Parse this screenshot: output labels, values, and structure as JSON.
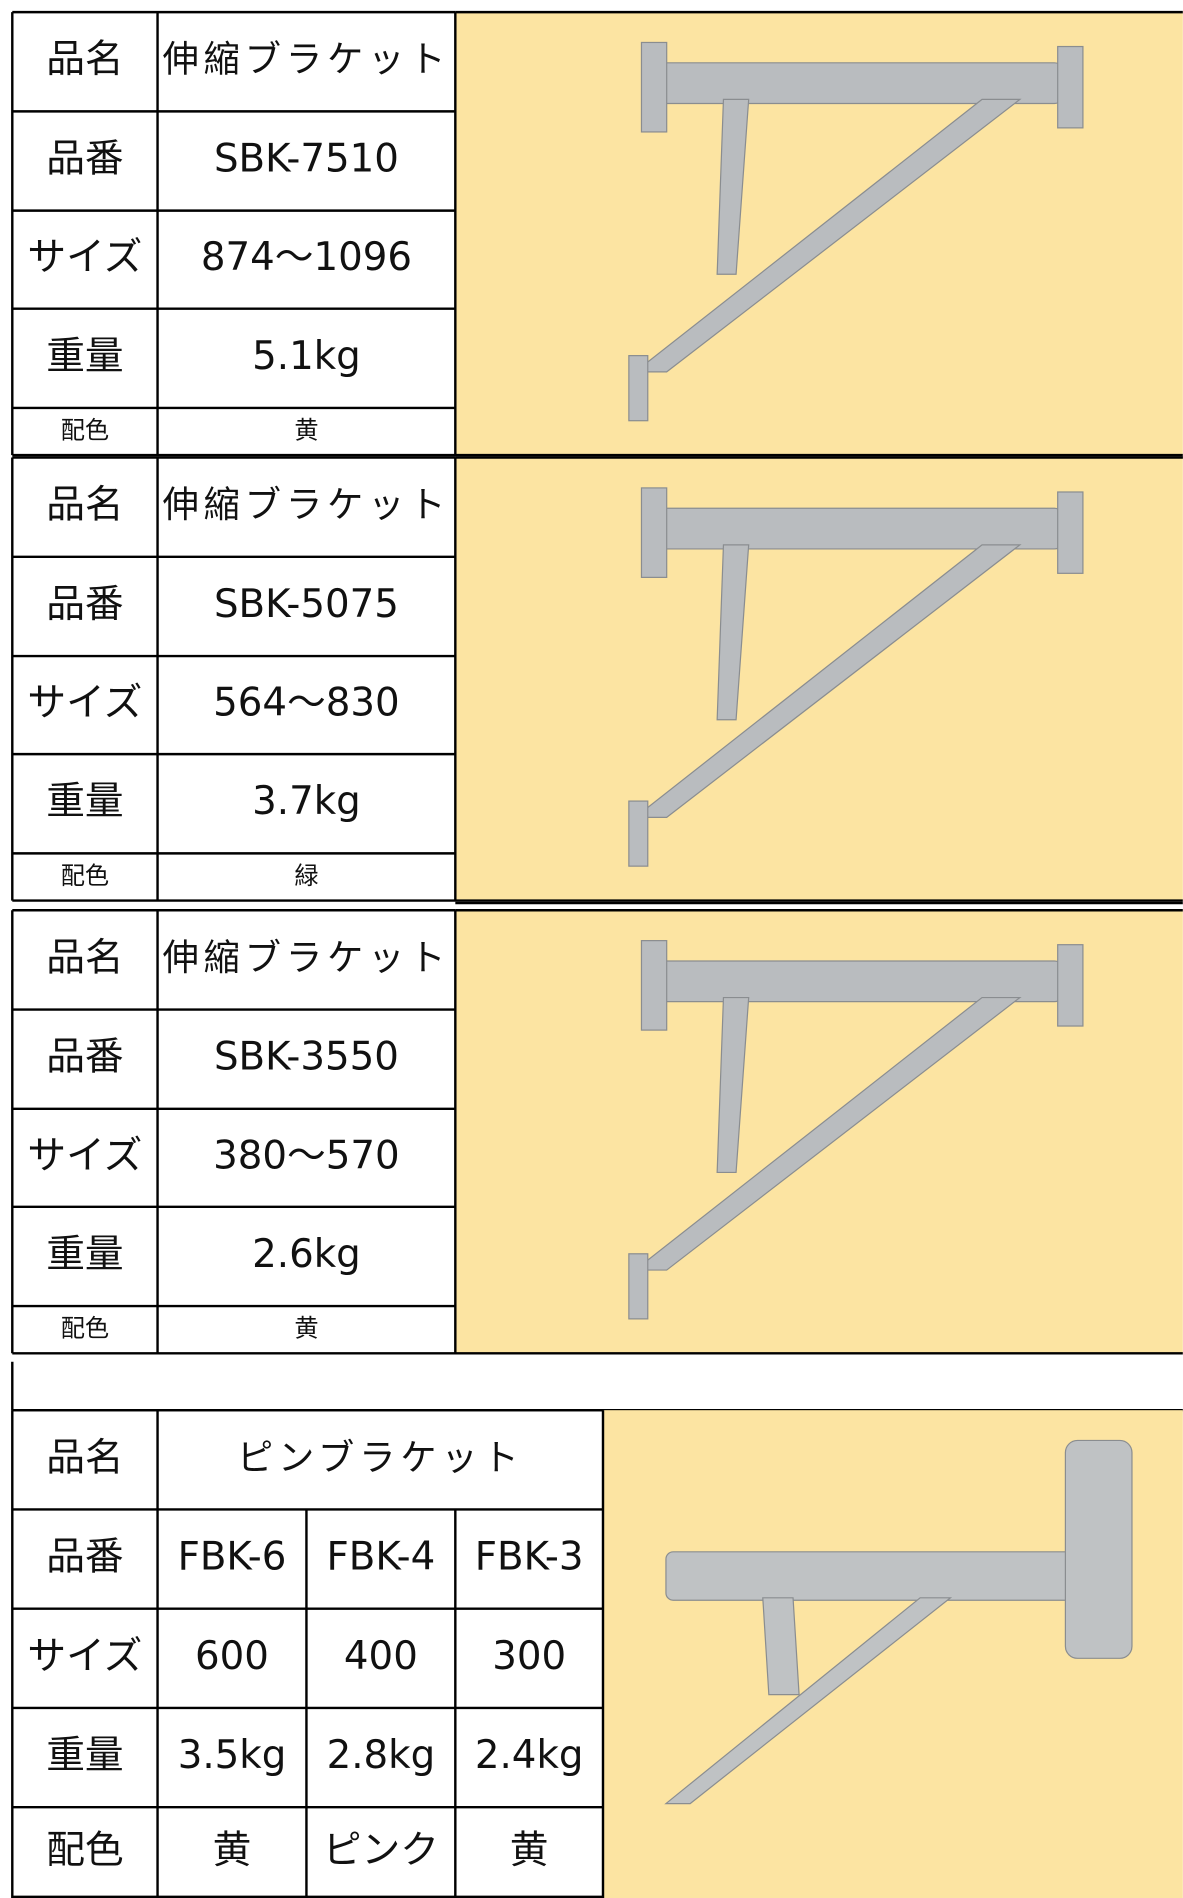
{
  "blocks": [
    {
      "rows": [
        [
          "品名",
          "伸縮ブラケット"
        ],
        [
          "品番",
          "SBK-7510"
        ],
        [
          "サイズ",
          "874～1096"
        ],
        [
          "重量",
          "5.1kg"
        ],
        [
          "配色",
          "黄"
        ]
      ]
    },
    {
      "rows": [
        [
          "品名",
          "伸縮ブラケット"
        ],
        [
          "品番",
          "SBK-5075"
        ],
        [
          "サイズ",
          "564～830"
        ],
        [
          "重量",
          "3.7kg"
        ],
        [
          "配色",
          "緑"
        ]
      ]
    },
    {
      "rows": [
        [
          "品名",
          "伸縮ブラケット"
        ],
        [
          "品番",
          "SBK-3550"
        ],
        [
          "サイズ",
          "380～570"
        ],
        [
          "重量",
          "2.6kg"
        ],
        [
          "配色",
          "黄"
        ]
      ]
    },
    {
      "rows": [
        [
          "品名",
          "ピンブラケット"
        ],
        [
          "品番",
          "FBK-6",
          "FBK-4",
          "FBK-3"
        ],
        [
          "サイズ",
          "600",
          "400",
          "300"
        ],
        [
          "重量",
          "3.5kg",
          "2.8kg",
          "2.4kg"
        ],
        [
          "配色",
          "黄",
          "ピンク",
          "黄"
        ]
      ]
    }
  ]
}
